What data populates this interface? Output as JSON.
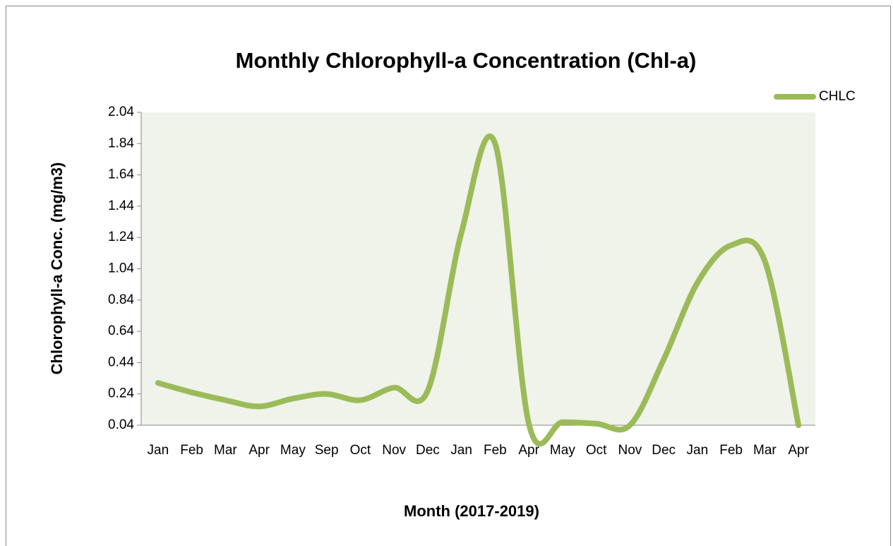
{
  "chart_data": {
    "type": "line",
    "title": "Monthly Chlorophyll-a Concentration  (Chl-a)",
    "x_label": "Month (2017-2019)",
    "y_label": "Chlorophyll-a Conc. (mg/m3)",
    "categories": [
      "Jan",
      "Feb",
      "Mar",
      "Apr",
      "May",
      "Sep",
      "Oct",
      "Nov",
      "Dec",
      "Jan",
      "Feb",
      "Apr",
      "May",
      "Oct",
      "Nov",
      "Dec",
      "Jan",
      "Feb",
      "Mar",
      "Apr"
    ],
    "series": [
      {
        "name": "CHLC",
        "color": "#9bbb59",
        "values": [
          0.31,
          0.25,
          0.2,
          0.16,
          0.21,
          0.24,
          0.2,
          0.28,
          0.26,
          1.27,
          1.84,
          0.05,
          0.06,
          0.05,
          0.04,
          0.46,
          0.95,
          1.19,
          1.09,
          0.04
        ]
      }
    ],
    "ylim": [
      0.04,
      2.04
    ],
    "yticks": [
      0.04,
      0.24,
      0.44,
      0.64,
      0.84,
      1.04,
      1.24,
      1.44,
      1.64,
      1.84,
      2.04
    ],
    "legend": "top-right",
    "smooth": true
  }
}
